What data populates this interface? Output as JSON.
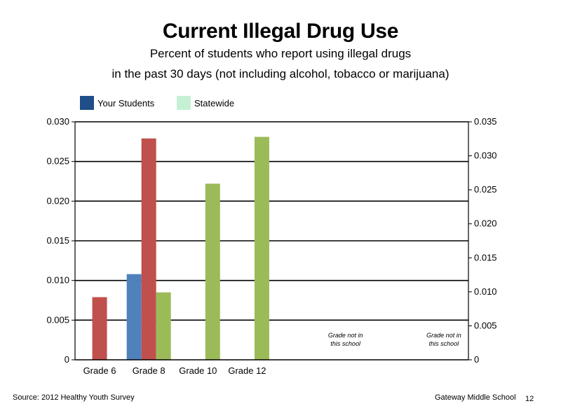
{
  "chart_data": {
    "type": "bar",
    "title": "Current Illegal Drug Use",
    "subtitle_lines": [
      "Percent of students who report using illegal drugs",
      "in the past 30 days (not including alcohol, tobacco or marijuana)"
    ],
    "categories": [
      "Grade 6",
      "Grade 8",
      "Grade 10",
      "Grade 12"
    ],
    "legend": [
      {
        "name": "Your Students",
        "color": "#1f4e89"
      },
      {
        "name": "Statewide",
        "color": "#c6f0d4"
      }
    ],
    "series": [
      {
        "name": "Your Students",
        "color": "#4f81bd",
        "values": [
          null,
          0.0108,
          null,
          null
        ]
      },
      {
        "color": "#c0504d",
        "values": [
          0.0079,
          0.0279,
          null,
          null
        ]
      },
      {
        "name": "Statewide",
        "color": "#9bbb59",
        "values": [
          null,
          0.0085,
          0.0222,
          0.0281
        ]
      }
    ],
    "left_axis": {
      "ylim": [
        0,
        0.03
      ],
      "ticks": [
        "0",
        "0.005",
        "0.010",
        "0.015",
        "0.020",
        "0.025",
        "0.030"
      ]
    },
    "right_axis": {
      "ylim": [
        0,
        0.035
      ],
      "ticks": [
        "0",
        "0.005",
        "0.010",
        "0.015",
        "0.020",
        "0.025",
        "0.030",
        "0.035"
      ]
    },
    "grid": true,
    "annotations": [
      {
        "line1": "Grade not in",
        "line2": "this school"
      },
      {
        "line1": "Grade not in",
        "line2": "this school"
      }
    ]
  },
  "footer": {
    "source": "Source: 2012 Healthy Youth Survey",
    "school": "Gateway Middle School",
    "page": "12"
  }
}
